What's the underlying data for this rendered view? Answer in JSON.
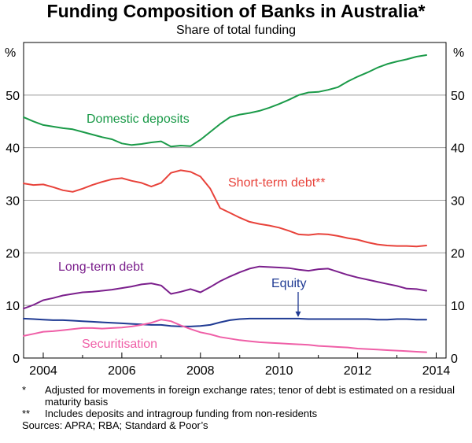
{
  "title": "Funding Composition of Banks in Australia*",
  "subtitle": "Share of total funding",
  "notes": [
    {
      "mark": "*",
      "text": "Adjusted for movements in foreign exchange rates; tenor of debt is estimated on a residual maturity basis"
    },
    {
      "mark": "**",
      "text": "Includes deposits and intragroup funding from non-residents"
    }
  ],
  "sources": "Sources: APRA; RBA; Standard & Poor’s",
  "chart_data": {
    "type": "line",
    "left_unit_label": "%",
    "right_unit_label": "%",
    "xlim": [
      2003.5,
      2014.25
    ],
    "ylim": [
      0,
      60
    ],
    "x_ticks": [
      2004,
      2006,
      2008,
      2010,
      2012,
      2014
    ],
    "x_tick_labels": [
      "2004",
      "2006",
      "2008",
      "2010",
      "2012",
      "2014"
    ],
    "y_ticks": [
      0,
      10,
      20,
      30,
      40,
      50
    ],
    "y_tick_labels": [
      "0",
      "10",
      "20",
      "30",
      "40",
      "50"
    ],
    "grid": true,
    "series": [
      {
        "name": "Domestic deposits",
        "color": "#1a9a48",
        "x": [
          2003.5,
          2003.75,
          2004,
          2004.25,
          2004.5,
          2004.75,
          2005,
          2005.25,
          2005.5,
          2005.75,
          2006,
          2006.25,
          2006.5,
          2006.75,
          2007,
          2007.25,
          2007.5,
          2007.75,
          2008,
          2008.25,
          2008.5,
          2008.75,
          2009,
          2009.25,
          2009.5,
          2009.75,
          2010,
          2010.25,
          2010.5,
          2010.75,
          2011,
          2011.25,
          2011.5,
          2011.75,
          2012,
          2012.25,
          2012.5,
          2012.75,
          2013,
          2013.25,
          2013.5,
          2013.75
        ],
        "y": [
          45.8,
          45.0,
          44.3,
          44.0,
          43.7,
          43.5,
          43.0,
          42.5,
          42.0,
          41.6,
          40.8,
          40.5,
          40.7,
          41.0,
          41.2,
          40.2,
          40.4,
          40.3,
          41.5,
          43.0,
          44.5,
          45.8,
          46.3,
          46.6,
          47.0,
          47.6,
          48.3,
          49.1,
          50.0,
          50.5,
          50.6,
          51.0,
          51.5,
          52.6,
          53.5,
          54.3,
          55.2,
          55.9,
          56.4,
          56.8,
          57.3,
          57.6
        ]
      },
      {
        "name": "Short-term debt**",
        "color": "#e8423a",
        "x": [
          2003.5,
          2003.75,
          2004,
          2004.25,
          2004.5,
          2004.75,
          2005,
          2005.25,
          2005.5,
          2005.75,
          2006,
          2006.25,
          2006.5,
          2006.75,
          2007,
          2007.25,
          2007.5,
          2007.75,
          2008,
          2008.25,
          2008.5,
          2008.75,
          2009,
          2009.25,
          2009.5,
          2009.75,
          2010,
          2010.25,
          2010.5,
          2010.75,
          2011,
          2011.25,
          2011.5,
          2011.75,
          2012,
          2012.25,
          2012.5,
          2012.75,
          2013,
          2013.25,
          2013.5,
          2013.75
        ],
        "y": [
          33.2,
          32.9,
          33.0,
          32.5,
          31.9,
          31.6,
          32.2,
          32.9,
          33.5,
          34.0,
          34.2,
          33.7,
          33.3,
          32.6,
          33.3,
          35.2,
          35.7,
          35.4,
          34.5,
          32.2,
          28.5,
          27.6,
          26.7,
          25.9,
          25.5,
          25.2,
          24.8,
          24.2,
          23.5,
          23.4,
          23.6,
          23.5,
          23.2,
          22.8,
          22.5,
          22.0,
          21.6,
          21.4,
          21.3,
          21.3,
          21.2,
          21.4
        ]
      },
      {
        "name": "Long-term debt",
        "color": "#7b1f8c",
        "x": [
          2003.5,
          2003.75,
          2004,
          2004.25,
          2004.5,
          2004.75,
          2005,
          2005.25,
          2005.5,
          2005.75,
          2006,
          2006.25,
          2006.5,
          2006.75,
          2007,
          2007.25,
          2007.5,
          2007.75,
          2008,
          2008.25,
          2008.5,
          2008.75,
          2009,
          2009.25,
          2009.5,
          2009.75,
          2010,
          2010.25,
          2010.5,
          2010.75,
          2011,
          2011.25,
          2011.5,
          2011.75,
          2012,
          2012.25,
          2012.5,
          2012.75,
          2013,
          2013.25,
          2013.5,
          2013.75
        ],
        "y": [
          9.4,
          10.1,
          11.0,
          11.4,
          11.9,
          12.2,
          12.5,
          12.6,
          12.8,
          13.0,
          13.3,
          13.6,
          14.0,
          14.2,
          13.8,
          12.2,
          12.6,
          13.1,
          12.5,
          13.5,
          14.6,
          15.5,
          16.3,
          17.0,
          17.4,
          17.3,
          17.2,
          17.1,
          16.8,
          16.6,
          16.9,
          17.0,
          16.4,
          15.8,
          15.3,
          14.9,
          14.5,
          14.1,
          13.7,
          13.2,
          13.1,
          12.8
        ]
      },
      {
        "name": "Equity",
        "color": "#1f3a93",
        "x": [
          2003.5,
          2003.75,
          2004,
          2004.25,
          2004.5,
          2004.75,
          2005,
          2005.25,
          2005.5,
          2005.75,
          2006,
          2006.25,
          2006.5,
          2006.75,
          2007,
          2007.25,
          2007.5,
          2007.75,
          2008,
          2008.25,
          2008.5,
          2008.75,
          2009,
          2009.25,
          2009.5,
          2009.75,
          2010,
          2010.25,
          2010.5,
          2010.75,
          2011,
          2011.25,
          2011.5,
          2011.75,
          2012,
          2012.25,
          2012.5,
          2012.75,
          2013,
          2013.25,
          2013.5,
          2013.75
        ],
        "y": [
          7.5,
          7.4,
          7.3,
          7.2,
          7.2,
          7.1,
          7.0,
          6.9,
          6.8,
          6.7,
          6.6,
          6.5,
          6.4,
          6.3,
          6.3,
          6.1,
          6.0,
          6.0,
          6.1,
          6.3,
          6.8,
          7.2,
          7.4,
          7.5,
          7.5,
          7.5,
          7.5,
          7.5,
          7.5,
          7.4,
          7.4,
          7.4,
          7.4,
          7.4,
          7.4,
          7.4,
          7.3,
          7.3,
          7.4,
          7.4,
          7.3,
          7.3
        ]
      },
      {
        "name": "Securitisation",
        "color": "#ef5fa7",
        "x": [
          2003.5,
          2003.75,
          2004,
          2004.25,
          2004.5,
          2004.75,
          2005,
          2005.25,
          2005.5,
          2005.75,
          2006,
          2006.25,
          2006.5,
          2006.75,
          2007,
          2007.25,
          2007.5,
          2007.75,
          2008,
          2008.25,
          2008.5,
          2008.75,
          2009,
          2009.25,
          2009.5,
          2009.75,
          2010,
          2010.25,
          2010.5,
          2010.75,
          2011,
          2011.25,
          2011.5,
          2011.75,
          2012,
          2012.25,
          2012.5,
          2012.75,
          2013,
          2013.25,
          2013.5,
          2013.75
        ],
        "y": [
          4.2,
          4.6,
          5.0,
          5.1,
          5.3,
          5.5,
          5.7,
          5.7,
          5.6,
          5.7,
          5.8,
          6.0,
          6.3,
          6.7,
          7.3,
          7.0,
          6.2,
          5.5,
          4.9,
          4.5,
          4.0,
          3.7,
          3.4,
          3.2,
          3.0,
          2.9,
          2.8,
          2.7,
          2.6,
          2.5,
          2.3,
          2.2,
          2.1,
          2.0,
          1.8,
          1.7,
          1.6,
          1.5,
          1.4,
          1.3,
          1.2,
          1.1
        ]
      }
    ],
    "annotations": [
      {
        "series": "Domestic deposits",
        "text": "Domestic deposits"
      },
      {
        "series": "Short-term debt**",
        "text": "Short-term debt**"
      },
      {
        "series": "Long-term debt",
        "text": "Long-term debt"
      },
      {
        "series": "Equity",
        "text": "Equity"
      },
      {
        "series": "Securitisation",
        "text": "Securitisation"
      }
    ]
  }
}
